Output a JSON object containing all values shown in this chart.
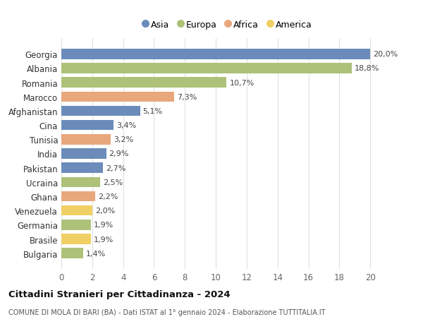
{
  "countries": [
    "Bulgaria",
    "Brasile",
    "Germania",
    "Venezuela",
    "Ghana",
    "Ucraina",
    "Pakistan",
    "India",
    "Tunisia",
    "Cina",
    "Afghanistan",
    "Marocco",
    "Romania",
    "Albania",
    "Georgia"
  ],
  "values": [
    1.4,
    1.9,
    1.9,
    2.0,
    2.2,
    2.5,
    2.7,
    2.9,
    3.2,
    3.4,
    5.1,
    7.3,
    10.7,
    18.8,
    20.0
  ],
  "labels": [
    "1,4%",
    "1,9%",
    "1,9%",
    "2,0%",
    "2,2%",
    "2,5%",
    "2,7%",
    "2,9%",
    "3,2%",
    "3,4%",
    "5,1%",
    "7,3%",
    "10,7%",
    "18,8%",
    "20,0%"
  ],
  "continents": [
    "Europa",
    "America",
    "Europa",
    "America",
    "Africa",
    "Europa",
    "Asia",
    "Asia",
    "Africa",
    "Asia",
    "Asia",
    "Africa",
    "Europa",
    "Europa",
    "Asia"
  ],
  "colors": {
    "Asia": "#6b8cba",
    "Europa": "#adc178",
    "Africa": "#e8a87c",
    "America": "#f0cf65"
  },
  "legend_order": [
    "Asia",
    "Europa",
    "Africa",
    "America"
  ],
  "title": "Cittadini Stranieri per Cittadinanza - 2024",
  "subtitle": "COMUNE DI MOLA DI BARI (BA) - Dati ISTAT al 1° gennaio 2024 - Elaborazione TUTTITALIA.IT",
  "xlim": [
    0,
    21.5
  ],
  "xticks": [
    0,
    2,
    4,
    6,
    8,
    10,
    12,
    14,
    16,
    18,
    20
  ],
  "background_color": "#ffffff",
  "grid_color": "#e0e0e0"
}
